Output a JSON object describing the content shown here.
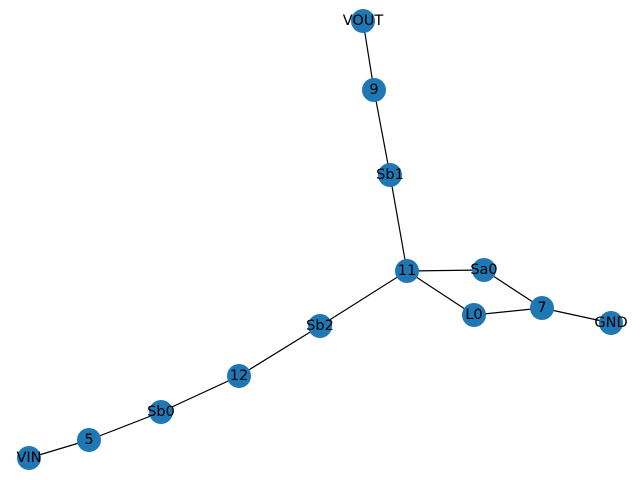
{
  "graph": {
    "node_color": "#1f77b4",
    "edge_color": "#000000",
    "label_color": "#000000",
    "nodes": [
      {
        "id": "VOUT",
        "label": "VOUT"
      },
      {
        "id": "9",
        "label": "9"
      },
      {
        "id": "Sb1",
        "label": "Sb1"
      },
      {
        "id": "11",
        "label": "11"
      },
      {
        "id": "Sa0",
        "label": "Sa0"
      },
      {
        "id": "L0",
        "label": "L0"
      },
      {
        "id": "7",
        "label": "7"
      },
      {
        "id": "GND",
        "label": "GND"
      },
      {
        "id": "Sb2",
        "label": "Sb2"
      },
      {
        "id": "12",
        "label": "12"
      },
      {
        "id": "Sb0",
        "label": "Sb0"
      },
      {
        "id": "5",
        "label": "5"
      },
      {
        "id": "VIN",
        "label": "VIN"
      }
    ],
    "edges": [
      [
        "VOUT",
        "9"
      ],
      [
        "9",
        "Sb1"
      ],
      [
        "Sb1",
        "11"
      ],
      [
        "11",
        "Sa0"
      ],
      [
        "11",
        "L0"
      ],
      [
        "11",
        "Sb2"
      ],
      [
        "Sa0",
        "7"
      ],
      [
        "L0",
        "7"
      ],
      [
        "7",
        "GND"
      ],
      [
        "Sb2",
        "12"
      ],
      [
        "12",
        "Sb0"
      ],
      [
        "Sb0",
        "5"
      ],
      [
        "5",
        "VIN"
      ]
    ]
  }
}
